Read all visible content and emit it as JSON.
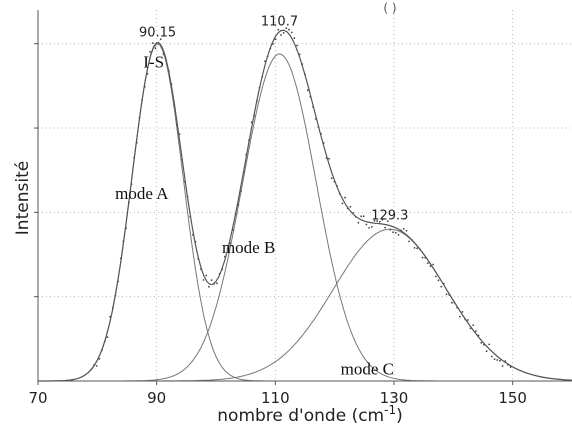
{
  "chart_data": {
    "type": "line",
    "xlabel": "nombre d'onde (cm",
    "xlabel_superscript": "-1",
    "xlabel_suffix": ")",
    "ylabel": "Intensité",
    "xlim": [
      70,
      160
    ],
    "ylim": [
      0,
      1.1
    ],
    "x_ticks": [
      "70",
      "90",
      "110",
      "130",
      "150"
    ],
    "x_tick_values": [
      70,
      90,
      110,
      130,
      150
    ],
    "grid": true,
    "top_fragment": "(   )",
    "peaks": [
      {
        "label": "90.15",
        "x": 90.15
      },
      {
        "label": "110.7",
        "x": 110.7
      },
      {
        "label": "129.3",
        "x": 129.3
      }
    ],
    "components": [
      {
        "name": "mode A",
        "center": 90.15,
        "amplitude": 1.0,
        "sigma": 4.3
      },
      {
        "name": "mode B",
        "center": 110.7,
        "amplitude": 0.97,
        "sigma": 6.2
      },
      {
        "name": "mode C",
        "center": 129.3,
        "amplitude": 0.45,
        "sigma": 9.5
      }
    ],
    "annotations": [
      {
        "text": "I-S",
        "x": 89.5,
        "y": 0.93
      },
      {
        "text": "mode A",
        "x": 87.5,
        "y": 0.54
      },
      {
        "text": "mode B",
        "x": 105.5,
        "y": 0.38
      },
      {
        "text": "mode C",
        "x": 125.5,
        "y": 0.02
      }
    ],
    "data_x_range": [
      79,
      150
    ],
    "colors": {
      "curve": "#555555",
      "points": "#444444",
      "grid": "#bbbbbb",
      "axis": "#555555"
    }
  }
}
